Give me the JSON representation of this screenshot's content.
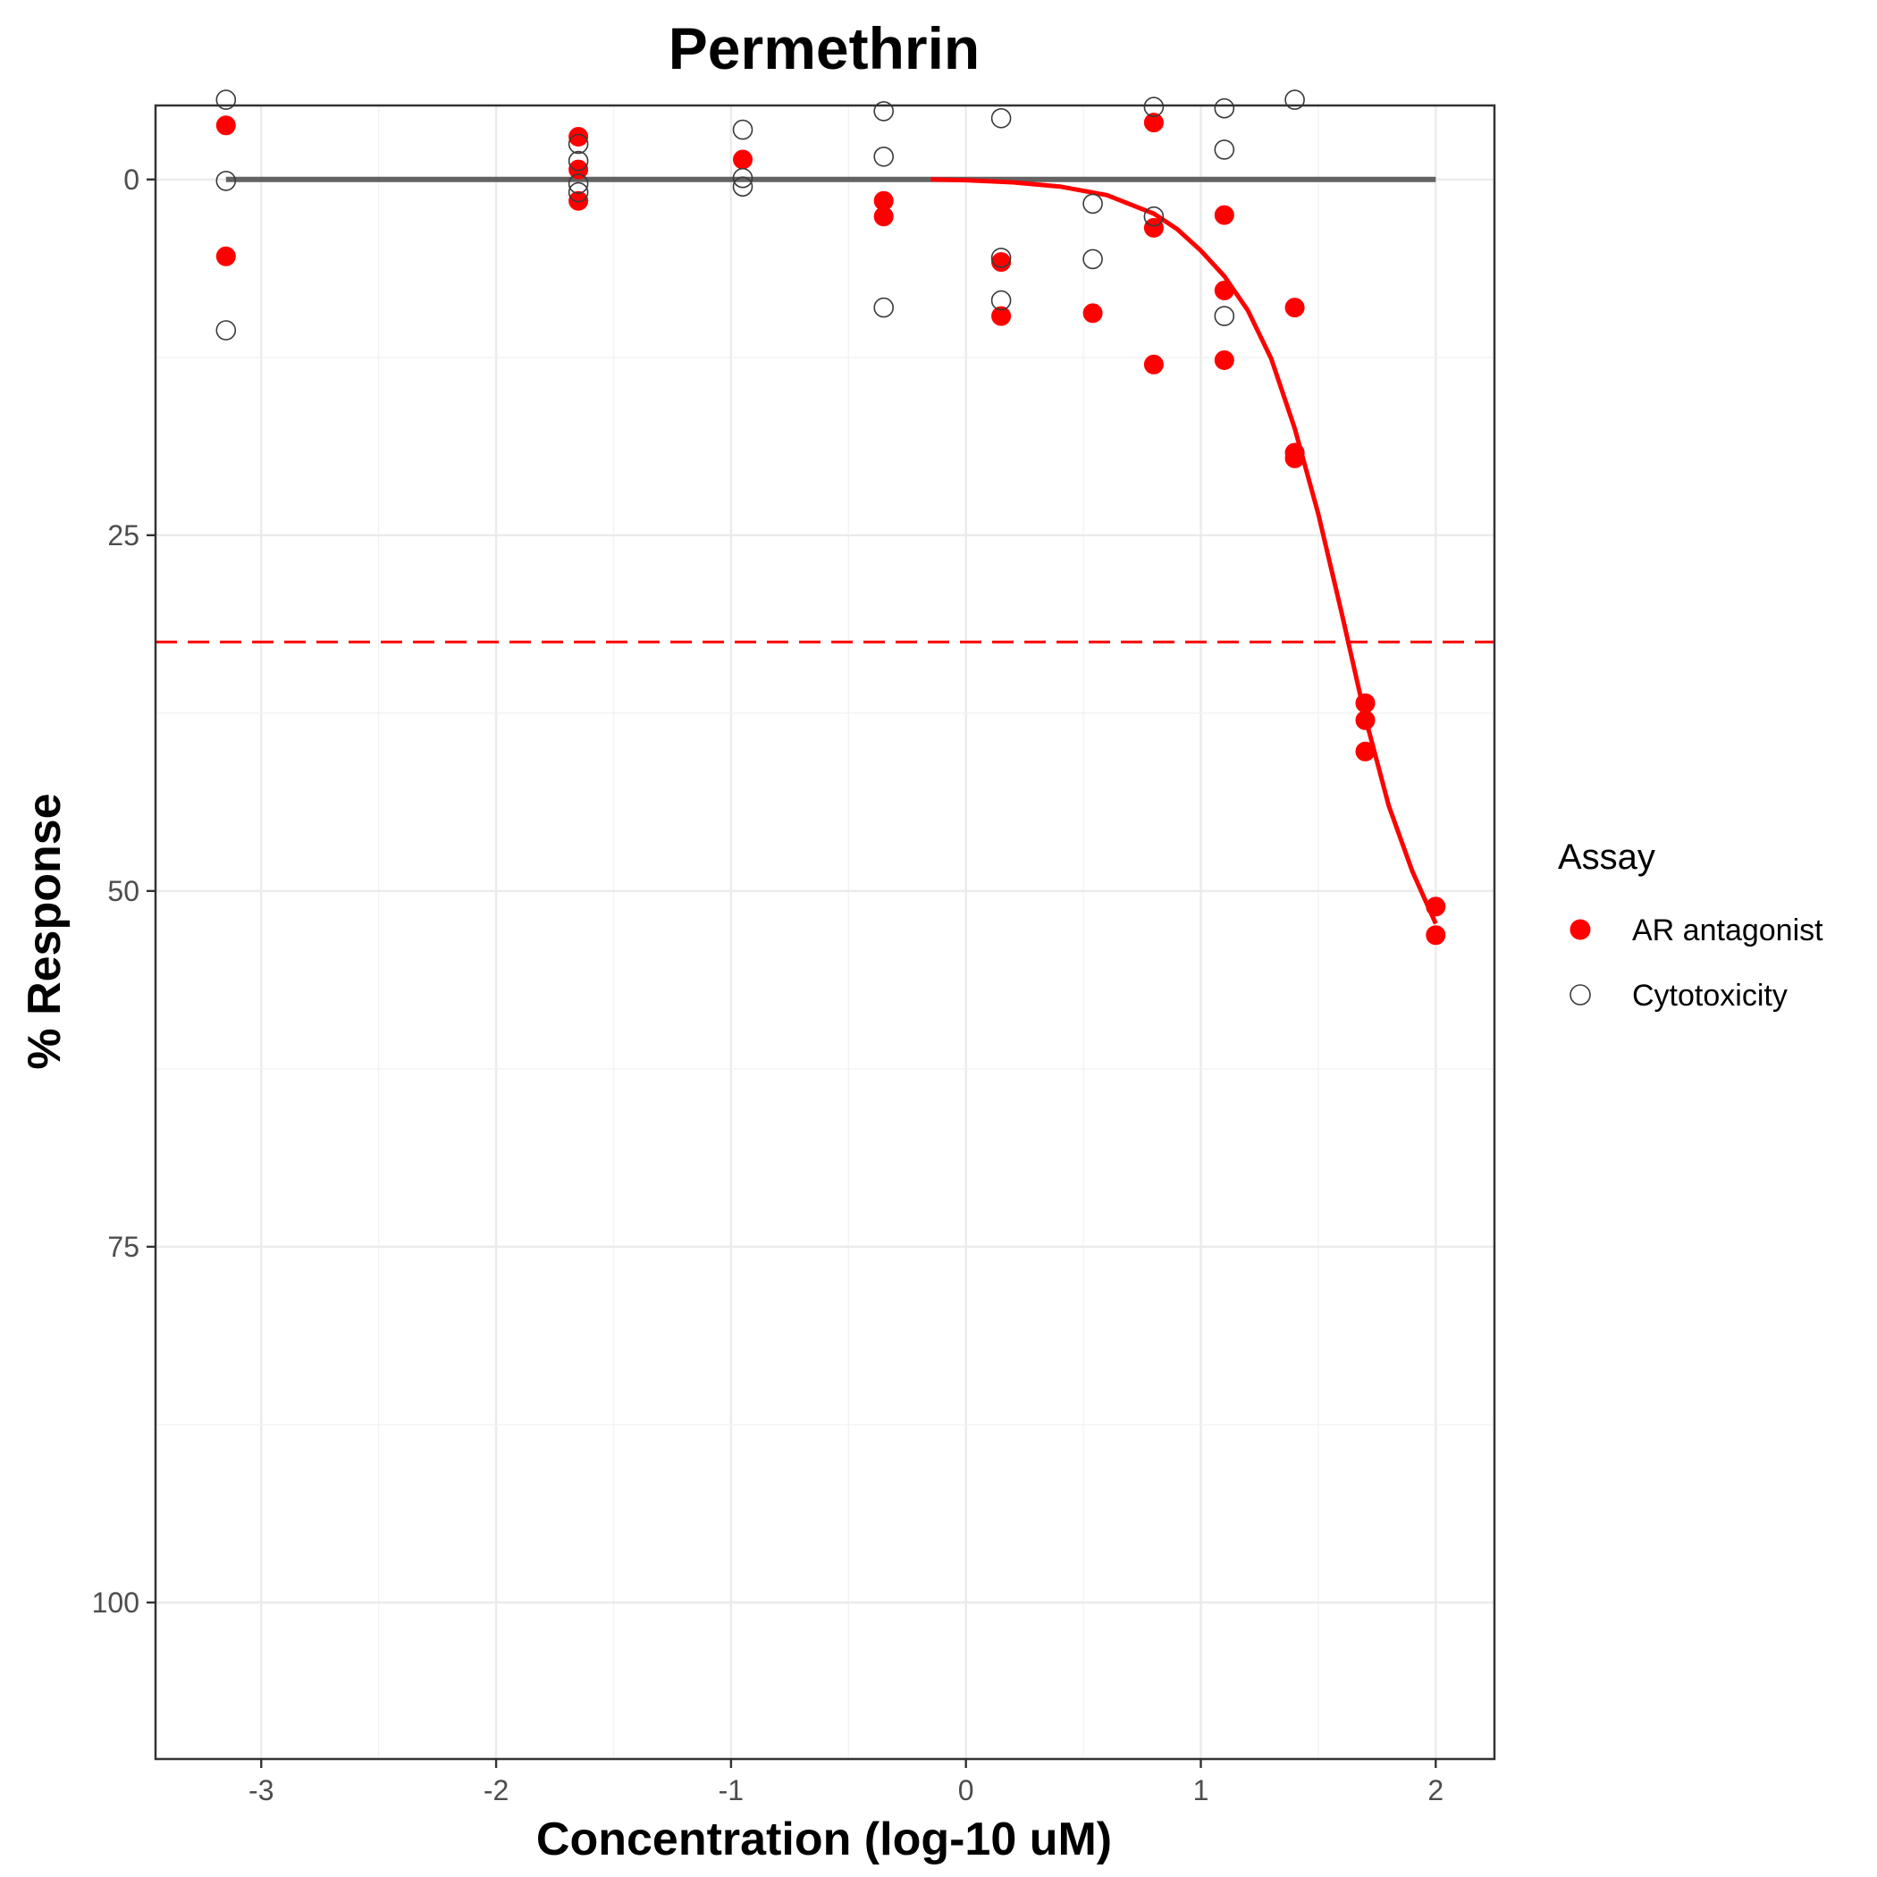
{
  "chart_data": {
    "type": "scatter",
    "title": "Permethrin",
    "xlabel": "Concentration (log-10 uM)",
    "ylabel": "% Response",
    "xlim": [
      -3.45,
      2.25
    ],
    "ylim": [
      -5.2,
      111
    ],
    "y_reversed": true,
    "x_ticks": [
      -3,
      -2,
      -1,
      0,
      1,
      2
    ],
    "x_tick_labels": [
      "-3",
      "-2",
      "-1",
      "0",
      "1",
      "2"
    ],
    "y_ticks": [
      0,
      25,
      50,
      75,
      100
    ],
    "y_tick_labels": [
      "0",
      "25",
      "50",
      "75",
      "100"
    ],
    "grid": true,
    "legend": {
      "title": "Assay",
      "position": "right",
      "entries": [
        {
          "label": "AR antagonist",
          "marker": "filled-circle",
          "color": "#ff0000"
        },
        {
          "label": "Cytotoxicity",
          "marker": "open-circle",
          "color": "#000000"
        }
      ]
    },
    "series": [
      {
        "name": "AR antagonist",
        "marker": "filled-circle",
        "color": "#ff0000",
        "points": [
          {
            "x": -3.15,
            "y": -3.8
          },
          {
            "x": -3.15,
            "y": 5.4
          },
          {
            "x": -1.65,
            "y": -3.0
          },
          {
            "x": -1.65,
            "y": -0.7
          },
          {
            "x": -1.65,
            "y": 1.5
          },
          {
            "x": -0.95,
            "y": -1.4
          },
          {
            "x": -0.35,
            "y": 1.5
          },
          {
            "x": -0.35,
            "y": 2.6
          },
          {
            "x": 0.15,
            "y": 5.8
          },
          {
            "x": 0.15,
            "y": 9.6
          },
          {
            "x": 0.54,
            "y": 9.4
          },
          {
            "x": 0.8,
            "y": -4.0
          },
          {
            "x": 0.8,
            "y": 3.4
          },
          {
            "x": 0.8,
            "y": 13.0
          },
          {
            "x": 1.1,
            "y": 2.5
          },
          {
            "x": 1.1,
            "y": 7.8
          },
          {
            "x": 1.1,
            "y": 12.7
          },
          {
            "x": 1.4,
            "y": 9.0
          },
          {
            "x": 1.4,
            "y": 19.2
          },
          {
            "x": 1.4,
            "y": 19.6
          },
          {
            "x": 1.7,
            "y": 36.8
          },
          {
            "x": 1.7,
            "y": 38.0
          },
          {
            "x": 1.7,
            "y": 40.2
          },
          {
            "x": 2.0,
            "y": 51.1
          },
          {
            "x": 2.0,
            "y": 53.1
          }
        ]
      },
      {
        "name": "Cytotoxicity",
        "marker": "open-circle",
        "color": "#000000",
        "points": [
          {
            "x": -3.15,
            "y": -5.6
          },
          {
            "x": -3.15,
            "y": 0.1
          },
          {
            "x": -3.15,
            "y": 10.6
          },
          {
            "x": -1.65,
            "y": -2.5
          },
          {
            "x": -1.65,
            "y": -1.3
          },
          {
            "x": -1.65,
            "y": 0.3
          },
          {
            "x": -1.65,
            "y": 0.9
          },
          {
            "x": -0.95,
            "y": -3.5
          },
          {
            "x": -0.95,
            "y": -0.1
          },
          {
            "x": -0.95,
            "y": 0.5
          },
          {
            "x": -0.35,
            "y": -4.8
          },
          {
            "x": -0.35,
            "y": -1.6
          },
          {
            "x": -0.35,
            "y": 9.0
          },
          {
            "x": 0.15,
            "y": -4.3
          },
          {
            "x": 0.15,
            "y": 5.5
          },
          {
            "x": 0.15,
            "y": 8.5
          },
          {
            "x": 0.54,
            "y": 1.7
          },
          {
            "x": 0.54,
            "y": 5.6
          },
          {
            "x": 0.8,
            "y": -5.1
          },
          {
            "x": 0.8,
            "y": 2.6
          },
          {
            "x": 1.1,
            "y": -5.0
          },
          {
            "x": 1.1,
            "y": -2.1
          },
          {
            "x": 1.1,
            "y": 9.6
          },
          {
            "x": 1.4,
            "y": -5.6
          }
        ]
      }
    ],
    "lines": [
      {
        "name": "baseline",
        "color": "#636363",
        "style": "solid",
        "points": [
          {
            "x": -3.15,
            "y": 0
          },
          {
            "x": 2.0,
            "y": 0
          }
        ]
      },
      {
        "name": "AR antagonist fit",
        "color": "#ff0000",
        "style": "solid",
        "points": [
          {
            "x": -0.15,
            "y": 0.0
          },
          {
            "x": 0.0,
            "y": 0.05
          },
          {
            "x": 0.2,
            "y": 0.2
          },
          {
            "x": 0.4,
            "y": 0.5
          },
          {
            "x": 0.6,
            "y": 1.1
          },
          {
            "x": 0.8,
            "y": 2.4
          },
          {
            "x": 0.9,
            "y": 3.5
          },
          {
            "x": 1.0,
            "y": 5.0
          },
          {
            "x": 1.1,
            "y": 6.8
          },
          {
            "x": 1.2,
            "y": 9.2
          },
          {
            "x": 1.3,
            "y": 12.6
          },
          {
            "x": 1.4,
            "y": 17.5
          },
          {
            "x": 1.5,
            "y": 23.5
          },
          {
            "x": 1.6,
            "y": 30.5
          },
          {
            "x": 1.7,
            "y": 37.8
          },
          {
            "x": 1.8,
            "y": 44.0
          },
          {
            "x": 1.9,
            "y": 48.6
          },
          {
            "x": 2.0,
            "y": 52.3
          }
        ]
      },
      {
        "name": "threshold",
        "color": "#ff0000",
        "style": "dashed",
        "points": [
          {
            "x": -3.45,
            "y": 32.5
          },
          {
            "x": 2.25,
            "y": 32.5
          }
        ]
      }
    ]
  }
}
